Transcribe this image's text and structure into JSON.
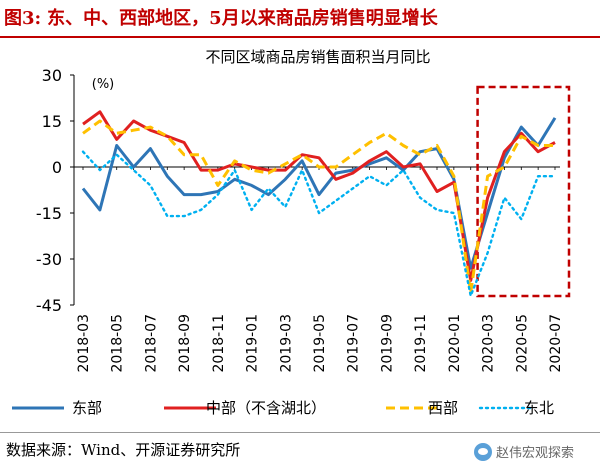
{
  "figure": {
    "label": "图3:",
    "title": "东、中、西部地区，5月以来商品房销售明显增长",
    "source": "数据来源：Wind、开源证券研究所",
    "watermark": "赵伟宏观探索"
  },
  "chart_data": {
    "type": "line",
    "title": "不同区域商品房销售面积当月同比",
    "unit_label": "(%)",
    "xlabel": "",
    "ylabel": "",
    "ylim": [
      -45,
      30
    ],
    "yticks": [
      30,
      15,
      0,
      -15,
      -30,
      -45
    ],
    "x_tick_labels": [
      "2018-03",
      "2018-05",
      "2018-07",
      "2018-09",
      "2018-11",
      "2019-01",
      "2019-03",
      "2019-05",
      "2019-07",
      "2019-09",
      "2019-11",
      "2020-01",
      "2020-03",
      "2020-05",
      "2020-07"
    ],
    "x": [
      "2018-03",
      "2018-04",
      "2018-05",
      "2018-06",
      "2018-07",
      "2018-08",
      "2018-09",
      "2018-10",
      "2018-11",
      "2018-12",
      "2019-01",
      "2019-02",
      "2019-03",
      "2019-04",
      "2019-05",
      "2019-06",
      "2019-07",
      "2019-08",
      "2019-09",
      "2019-10",
      "2019-11",
      "2019-12",
      "2020-01",
      "2020-02",
      "2020-03",
      "2020-04",
      "2020-05",
      "2020-06",
      "2020-07"
    ],
    "legend_placement": "bottom",
    "grid": false,
    "highlight": {
      "from": "2020-03",
      "to": "2020-07",
      "color": "#c00000",
      "style": "dashed"
    },
    "series": [
      {
        "name": "东部",
        "color": "#2e75b6",
        "dash": "solid",
        "values": [
          -7,
          -14,
          7,
          0,
          6,
          -3,
          -9,
          -9,
          -8,
          -4,
          -6,
          -9,
          -4,
          2,
          -9,
          -2,
          -1,
          1,
          3,
          -1,
          5,
          6,
          -4,
          -33,
          -15,
          3,
          13,
          7,
          16
        ]
      },
      {
        "name": "中部（不含湖北）",
        "color": "#e02020",
        "dash": "solid",
        "values": [
          14,
          18,
          9,
          15,
          12,
          10,
          8,
          -1,
          -1,
          1,
          0,
          -1,
          -1,
          4,
          3,
          -4,
          -2,
          2,
          5,
          0,
          1,
          -8,
          -5,
          -37,
          -10,
          5,
          11,
          5,
          8
        ]
      },
      {
        "name": "西部",
        "color": "#ffc000",
        "dash": "dashed",
        "values": [
          11,
          15,
          11,
          12,
          13,
          10,
          4,
          4,
          -6,
          2,
          -1,
          -2,
          1,
          4,
          0,
          0,
          4,
          8,
          11,
          7,
          4,
          7,
          -3,
          -41,
          -3,
          0,
          10,
          7,
          7
        ]
      },
      {
        "name": "东北",
        "color": "#00b0f0",
        "dash": "dotted",
        "values": [
          5,
          -1,
          4,
          -1,
          -6,
          -16,
          -16,
          -14,
          -9,
          -1,
          -14,
          -7,
          -13,
          -1,
          -15,
          -11,
          -7,
          -3,
          -6,
          -1,
          -10,
          -14,
          -15,
          -42,
          -28,
          -10,
          -17,
          -3,
          -3
        ]
      }
    ]
  }
}
